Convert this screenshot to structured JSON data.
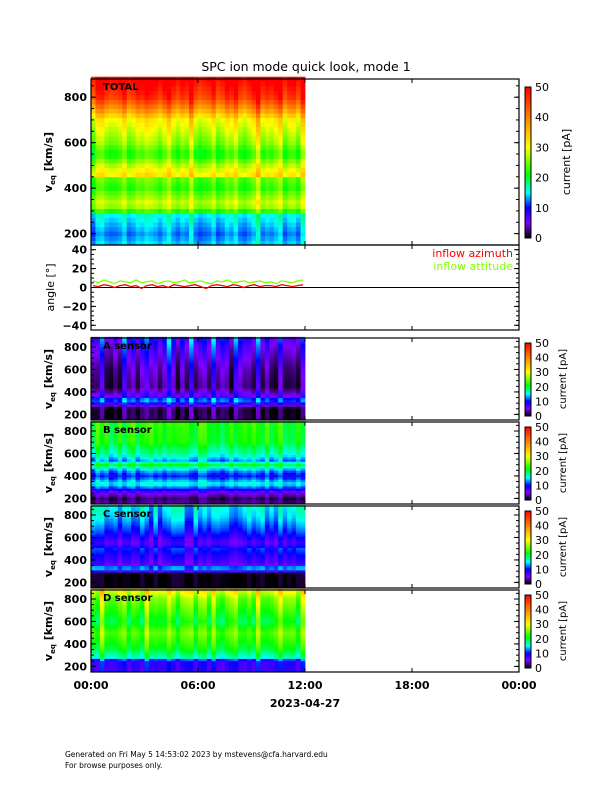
{
  "title": "SPC ion mode quick look, mode 1",
  "footer": {
    "line1": "Generated on Fri May  5 14:53:02 2023 by mstevens@cfa.harvard.edu",
    "line2": "For browse purposes only."
  },
  "colors": {
    "azimuth": "#ff0000",
    "attitude": "#80ff00"
  },
  "chart_data": {
    "type": "heatmap",
    "xaxis": {
      "ticks": [
        "00:00",
        "06:00",
        "12:00",
        "18:00",
        "00:00"
      ],
      "tick_hours": [
        0,
        6,
        12,
        18,
        24
      ],
      "date_label": "2023-04-27",
      "data_end_hours": 12
    },
    "colorbar": {
      "label": "current [pA]",
      "range": [
        0,
        50
      ],
      "ticks": [
        "0",
        "10",
        "20",
        "30",
        "40",
        "50"
      ]
    },
    "spectrograms": [
      {
        "name": "total",
        "label": "TOTAL",
        "ylabel_main": "v",
        "ylabel_sub": "eq",
        "ylabel_unit": "[km/s]",
        "yrange": [
          150,
          880
        ],
        "yticks": [
          "200",
          "400",
          "600",
          "800"
        ],
        "profile": [
          [
            150,
            14
          ],
          [
            200,
            12
          ],
          [
            280,
            15
          ],
          [
            300,
            22
          ],
          [
            330,
            28
          ],
          [
            400,
            22
          ],
          [
            450,
            24
          ],
          [
            460,
            31
          ],
          [
            500,
            27
          ],
          [
            550,
            21
          ],
          [
            600,
            25
          ],
          [
            700,
            30
          ],
          [
            750,
            38
          ],
          [
            800,
            45
          ],
          [
            880,
            50
          ]
        ]
      },
      {
        "name": "a-sensor",
        "label": "A sensor",
        "ylabel_main": "v",
        "ylabel_sub": "eq",
        "ylabel_unit": "[km/s]",
        "yrange": [
          150,
          880
        ],
        "yticks": [
          "200",
          "400",
          "600",
          "800"
        ],
        "profile": [
          [
            150,
            1
          ],
          [
            260,
            1
          ],
          [
            300,
            8
          ],
          [
            330,
            13
          ],
          [
            360,
            6
          ],
          [
            450,
            2
          ],
          [
            600,
            3
          ],
          [
            800,
            6
          ],
          [
            880,
            8
          ]
        ]
      },
      {
        "name": "b-sensor",
        "label": "B sensor",
        "ylabel_main": "v",
        "ylabel_sub": "eq",
        "ylabel_unit": "[km/s]",
        "yrange": [
          150,
          880
        ],
        "yticks": [
          "200",
          "400",
          "600",
          "800"
        ],
        "profile": [
          [
            150,
            3
          ],
          [
            200,
            2
          ],
          [
            250,
            5
          ],
          [
            300,
            12
          ],
          [
            330,
            16
          ],
          [
            400,
            10
          ],
          [
            450,
            13
          ],
          [
            500,
            20
          ],
          [
            540,
            13
          ],
          [
            580,
            16
          ],
          [
            700,
            21
          ],
          [
            880,
            22
          ]
        ]
      },
      {
        "name": "c-sensor",
        "label": "C sensor",
        "ylabel_main": "v",
        "ylabel_sub": "eq",
        "ylabel_unit": "[km/s]",
        "yrange": [
          150,
          880
        ],
        "yticks": [
          "200",
          "400",
          "600",
          "800"
        ],
        "profile": [
          [
            150,
            0
          ],
          [
            280,
            0
          ],
          [
            300,
            7
          ],
          [
            330,
            15
          ],
          [
            360,
            6
          ],
          [
            500,
            10
          ],
          [
            550,
            6
          ],
          [
            650,
            10
          ],
          [
            800,
            14
          ],
          [
            880,
            15
          ]
        ]
      },
      {
        "name": "d-sensor",
        "label": "D sensor",
        "ylabel_main": "v",
        "ylabel_sub": "eq",
        "ylabel_unit": "[km/s]",
        "yrange": [
          150,
          880
        ],
        "yticks": [
          "200",
          "400",
          "600",
          "800"
        ],
        "profile": [
          [
            150,
            8
          ],
          [
            250,
            8
          ],
          [
            280,
            16
          ],
          [
            350,
            20
          ],
          [
            500,
            24
          ],
          [
            600,
            20
          ],
          [
            800,
            25
          ],
          [
            880,
            30
          ]
        ]
      }
    ],
    "angle_panel": {
      "type": "line",
      "ylabel": "angle [°]",
      "yrange": [
        -45,
        45
      ],
      "yticks": [
        "40",
        "20",
        "0",
        "−20",
        "−40"
      ],
      "series": [
        {
          "name": "inflow azimuth",
          "color": "#ff0000",
          "values": [
            2,
            1,
            3,
            2,
            0,
            2,
            3,
            1,
            2,
            -1,
            2,
            3,
            1,
            2,
            0,
            3,
            2,
            1,
            2,
            3,
            1,
            -1,
            2,
            3,
            2,
            1,
            3,
            2,
            0,
            2,
            3,
            1,
            2,
            2,
            1,
            3,
            2,
            1,
            2,
            3
          ]
        },
        {
          "name": "inflow attitude",
          "color": "#80ff00",
          "values": [
            7,
            5,
            8,
            6,
            4,
            7,
            6,
            5,
            8,
            5,
            6,
            7,
            4,
            6,
            7,
            5,
            6,
            8,
            5,
            6,
            7,
            5,
            4,
            7,
            6,
            8,
            5,
            6,
            7,
            5,
            6,
            7,
            5,
            6,
            4,
            7,
            6,
            5,
            7,
            8
          ]
        }
      ]
    }
  }
}
